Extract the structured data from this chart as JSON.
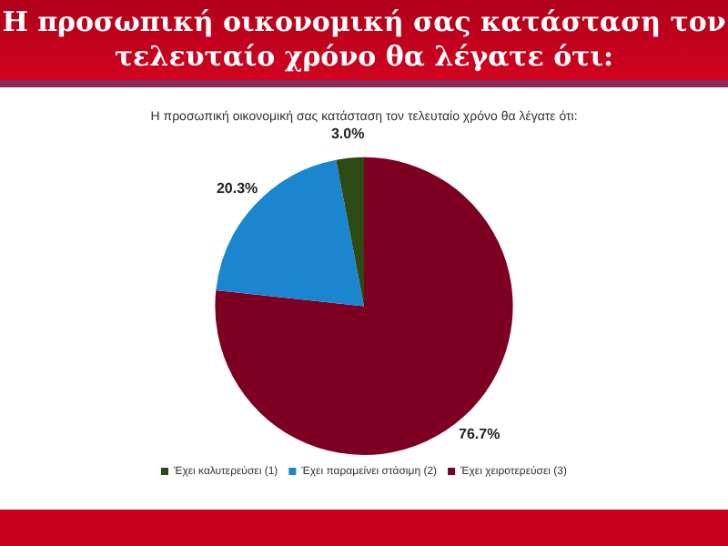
{
  "chart_data": {
    "type": "pie",
    "title": "Η προσωπική οικονομική σας κατάσταση τον τελευταίο χρόνο θα λέγατε ότι:",
    "subtitle": "Η προσωπική οικονομική σας κατάσταση τον τελευταίο χρόνο θα λέγατε ότι:",
    "categories": [
      "Έχει καλυτερεύσει (1)",
      "Έχει παραμείνει στάσιμη (2)",
      "Έχει χειροτερεύσει (3)"
    ],
    "values": [
      3.0,
      20.3,
      76.7
    ],
    "value_labels": [
      "3.0%",
      "20.3%",
      "76.7%"
    ],
    "colors": [
      "#2d4a12",
      "#1a86d0",
      "#7d0022"
    ],
    "legend": "bottom"
  }
}
